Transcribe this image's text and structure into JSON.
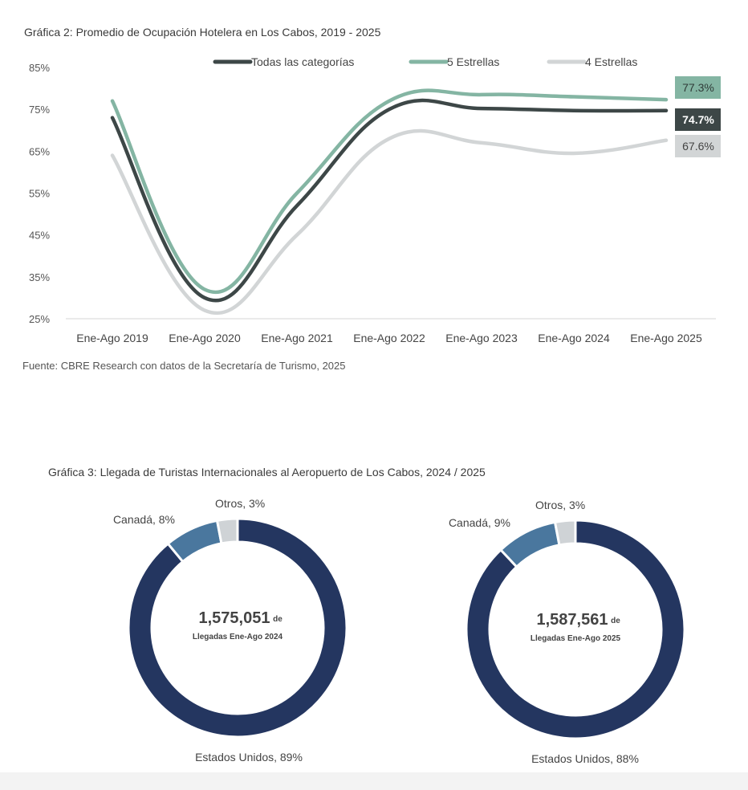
{
  "chart_data": [
    {
      "type": "line",
      "title": "Gráfica 2: Promedio de Ocupación Hotelera en Los Cabos, 2019 - 2025",
      "source": "Fuente: CBRE Research con datos de la Secretaría de Turismo, 2025",
      "categories": [
        "Ene-Ago 2019",
        "Ene-Ago 2020",
        "Ene-Ago 2021",
        "Ene-Ago 2022",
        "Ene-Ago 2023",
        "Ene-Ago 2024",
        "Ene-Ago 2025"
      ],
      "ylim": [
        25,
        85
      ],
      "yticks": [
        "25%",
        "35%",
        "45%",
        "55%",
        "65%",
        "75%",
        "85%"
      ],
      "legend_position": "top",
      "grid": false,
      "series": [
        {
          "name": "Todas las categorías",
          "color": "#3d4747",
          "values": [
            73,
            30,
            52,
            75,
            75.2,
            74.7,
            74.7
          ],
          "end_label": "74.7%"
        },
        {
          "name": "5 Estrellas",
          "color": "#84b5a3",
          "values": [
            77,
            32,
            55,
            77,
            78.5,
            78,
            77.3
          ],
          "end_label": "77.3%"
        },
        {
          "name": "4 Estrellas",
          "color": "#d2d5d6",
          "values": [
            64,
            27,
            45,
            68,
            67,
            64.5,
            67.6
          ],
          "end_label": "67.6%"
        }
      ]
    },
    {
      "type": "pie",
      "title": "Gráfica 3: Llegada de Turistas Internacionales al Aeropuerto de Los Cabos, 2024 / 2025",
      "donuts": [
        {
          "center_value": "1,575,051",
          "center_suffix": "de",
          "center_caption": "Llegadas Ene-Ago 2024",
          "slices": [
            {
              "label": "Estados Unidos, 89%",
              "value": 89,
              "color": "#243660"
            },
            {
              "label": "Canadá, 8%",
              "value": 8,
              "color": "#4a779e"
            },
            {
              "label": "Otros, 3%",
              "value": 3,
              "color": "#cfd3d6"
            }
          ]
        },
        {
          "center_value": "1,587,561",
          "center_suffix": "de",
          "center_caption": "Llegadas Ene-Ago 2025",
          "slices": [
            {
              "label": "Estados Unidos, 88%",
              "value": 88,
              "color": "#243660"
            },
            {
              "label": "Canadá, 9%",
              "value": 9,
              "color": "#4a779e"
            },
            {
              "label": "Otros, 3%",
              "value": 3,
              "color": "#cfd3d6"
            }
          ]
        }
      ]
    }
  ]
}
